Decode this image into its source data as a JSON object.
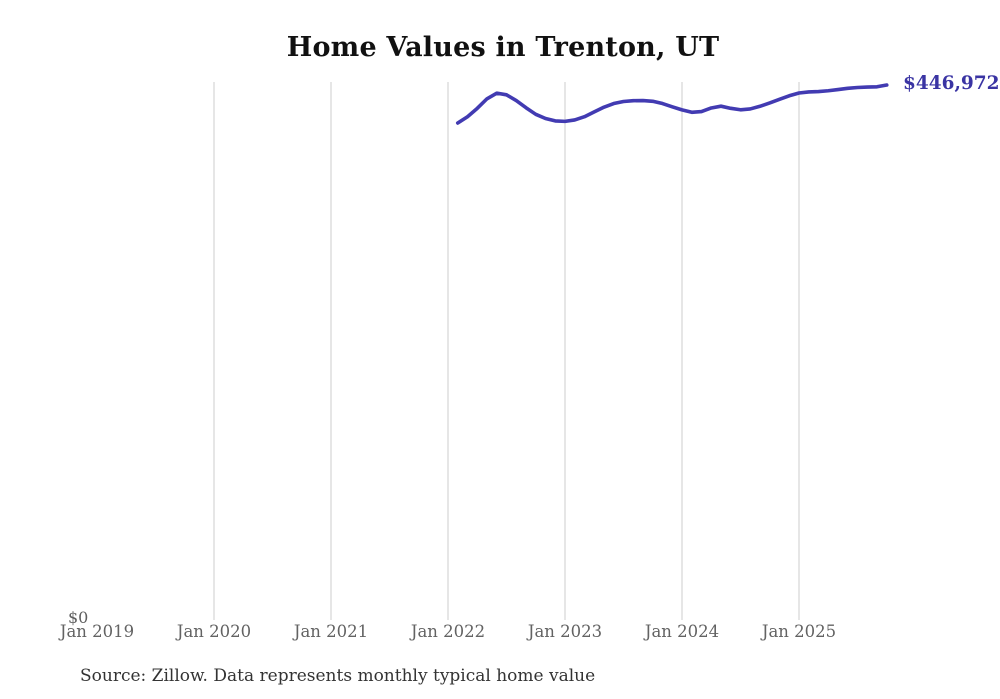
{
  "page": {
    "background": "#ffffff"
  },
  "chart_data": {
    "type": "line",
    "title": "Home Values in Trenton, UT",
    "xlabel": "",
    "ylabel": "",
    "ylim": [
      0,
      449500
    ],
    "grid": "vertical-yearly",
    "gridline_color": "#cccccc",
    "x_tick_labels": [
      "Jan 2019",
      "Jan 2020",
      "Jan 2021",
      "Jan 2022",
      "Jan 2023",
      "Jan 2024",
      "Jan 2025"
    ],
    "x_ticks_with_gridline": [
      "Jan 2020",
      "Jan 2021",
      "Jan 2022",
      "Jan 2023",
      "Jan 2024",
      "Jan 2025"
    ],
    "y_zero_label": "$0",
    "end_label": "$446,972",
    "end_label_color": "#3a34a3",
    "source_note": "Source: Zillow. Data represents monthly typical home value",
    "series": [
      {
        "name": "Monthly typical home value",
        "color": "#423bb2",
        "months": [
          "Feb 2022",
          "Mar 2022",
          "Apr 2022",
          "May 2022",
          "Jun 2022",
          "Jul 2022",
          "Aug 2022",
          "Sep 2022",
          "Oct 2022",
          "Nov 2022",
          "Dec 2022",
          "Jan 2023",
          "Feb 2023",
          "Mar 2023",
          "Apr 2023",
          "May 2023",
          "Jun 2023",
          "Jul 2023",
          "Aug 2023",
          "Sep 2023",
          "Oct 2023",
          "Nov 2023",
          "Dec 2023",
          "Jan 2024",
          "Feb 2024",
          "Mar 2024",
          "Apr 2024",
          "May 2024",
          "Jun 2024",
          "Jul 2024",
          "Aug 2024",
          "Sep 2024",
          "Oct 2024",
          "Nov 2024",
          "Dec 2024",
          "Jan 2025",
          "Feb 2025",
          "Mar 2025",
          "Apr 2025",
          "May 2025",
          "Jun 2025",
          "Jul 2025",
          "Aug 2025",
          "Sep 2025",
          "Oct 2025"
        ],
        "values": [
          415200,
          420500,
          427500,
          435500,
          440200,
          438800,
          434000,
          428000,
          422500,
          419000,
          417000,
          416600,
          417800,
          420500,
          424500,
          428500,
          431500,
          433200,
          433900,
          434000,
          433400,
          431500,
          428800,
          426200,
          424200,
          424800,
          427800,
          429300,
          427500,
          426300,
          427000,
          429200,
          432000,
          435000,
          438000,
          440300,
          441200,
          441500,
          442200,
          443200,
          444200,
          444900,
          445300,
          445500,
          446972
        ]
      }
    ]
  }
}
